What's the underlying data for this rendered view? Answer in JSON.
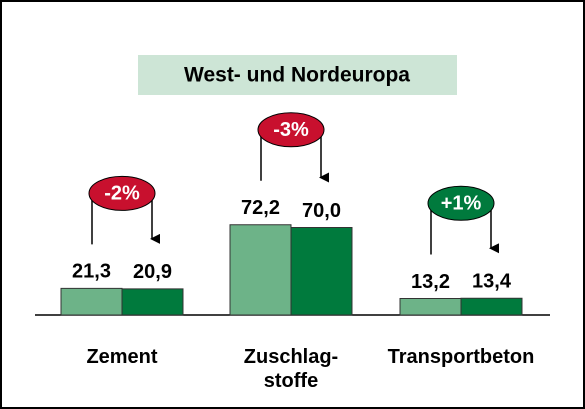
{
  "chart_data": {
    "type": "bar",
    "title": "West- und Nordeuropa",
    "title_bg": "#cde5d6",
    "categories": [
      "Zement",
      "Zuschlag-\nstoffe",
      "Transportbeton"
    ],
    "series": [
      {
        "color": "#6db388",
        "values": [
          21.3,
          72.2,
          13.2
        ],
        "value_labels": [
          "21,3",
          "72,2",
          "13,2"
        ]
      },
      {
        "color": "#007a3d",
        "values": [
          20.9,
          70.0,
          13.4
        ],
        "value_labels": [
          "20,9",
          "70,0",
          "13,4"
        ]
      }
    ],
    "annotations": [
      {
        "text": "-2%",
        "color": "#c8102e"
      },
      {
        "text": "-3%",
        "color": "#c8102e"
      },
      {
        "text": "+1%",
        "color": "#007a3d"
      }
    ]
  }
}
